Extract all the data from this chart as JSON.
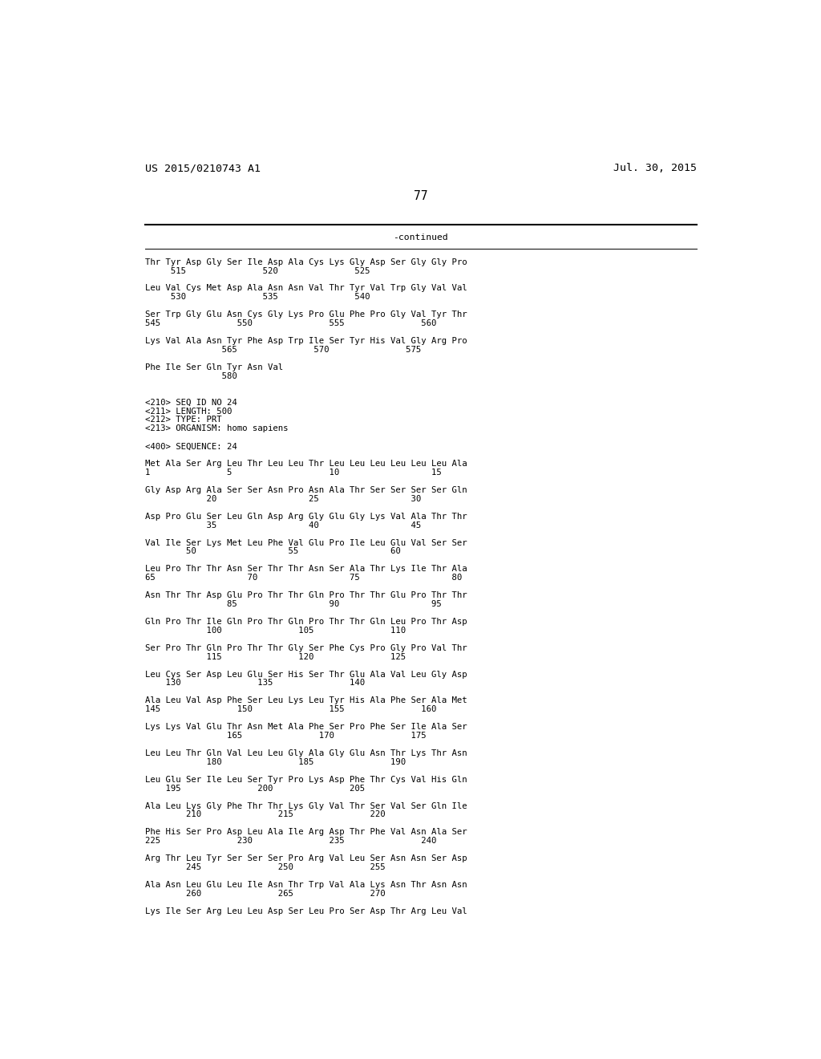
{
  "header_left": "US 2015/0210743 A1",
  "header_right": "Jul. 30, 2015",
  "page_number": "77",
  "continued_label": "-continued",
  "background_color": "#ffffff",
  "text_color": "#000000",
  "font_size": 7.7,
  "mono_font": "DejaVu Sans Mono",
  "header_font_size": 9.5,
  "content_lines": [
    "Thr Tyr Asp Gly Ser Ile Asp Ala Cys Lys Gly Asp Ser Gly Gly Pro",
    "     515               520               525",
    "",
    "Leu Val Cys Met Asp Ala Asn Asn Val Thr Tyr Val Trp Gly Val Val",
    "     530               535               540",
    "",
    "Ser Trp Gly Glu Asn Cys Gly Lys Pro Glu Phe Pro Gly Val Tyr Thr",
    "545               550               555               560",
    "",
    "Lys Val Ala Asn Tyr Phe Asp Trp Ile Ser Tyr His Val Gly Arg Pro",
    "               565               570               575",
    "",
    "Phe Ile Ser Gln Tyr Asn Val",
    "               580",
    "",
    "",
    "<210> SEQ ID NO 24",
    "<211> LENGTH: 500",
    "<212> TYPE: PRT",
    "<213> ORGANISM: homo sapiens",
    "",
    "<400> SEQUENCE: 24",
    "",
    "Met Ala Ser Arg Leu Thr Leu Leu Thr Leu Leu Leu Leu Leu Leu Ala",
    "1               5                   10                  15",
    "",
    "Gly Asp Arg Ala Ser Ser Asn Pro Asn Ala Thr Ser Ser Ser Ser Gln",
    "            20                  25                  30",
    "",
    "Asp Pro Glu Ser Leu Gln Asp Arg Gly Glu Gly Lys Val Ala Thr Thr",
    "            35                  40                  45",
    "",
    "Val Ile Ser Lys Met Leu Phe Val Glu Pro Ile Leu Glu Val Ser Ser",
    "        50                  55                  60",
    "",
    "Leu Pro Thr Thr Asn Ser Thr Thr Asn Ser Ala Thr Lys Ile Thr Ala",
    "65                  70                  75                  80",
    "",
    "Asn Thr Thr Asp Glu Pro Thr Thr Gln Pro Thr Thr Glu Pro Thr Thr",
    "                85                  90                  95",
    "",
    "Gln Pro Thr Ile Gln Pro Thr Gln Pro Thr Thr Gln Leu Pro Thr Asp",
    "            100               105               110",
    "",
    "Ser Pro Thr Gln Pro Thr Thr Gly Ser Phe Cys Pro Gly Pro Val Thr",
    "            115               120               125",
    "",
    "Leu Cys Ser Asp Leu Glu Ser His Ser Thr Glu Ala Val Leu Gly Asp",
    "    130               135               140",
    "",
    "Ala Leu Val Asp Phe Ser Leu Lys Leu Tyr His Ala Phe Ser Ala Met",
    "145               150               155               160",
    "",
    "Lys Lys Val Glu Thr Asn Met Ala Phe Ser Pro Phe Ser Ile Ala Ser",
    "                165               170               175",
    "",
    "Leu Leu Thr Gln Val Leu Leu Gly Ala Gly Glu Asn Thr Lys Thr Asn",
    "            180               185               190",
    "",
    "Leu Glu Ser Ile Leu Ser Tyr Pro Lys Asp Phe Thr Cys Val His Gln",
    "    195               200               205",
    "",
    "Ala Leu Lys Gly Phe Thr Thr Lys Gly Val Thr Ser Val Ser Gln Ile",
    "        210               215               220",
    "",
    "Phe His Ser Pro Asp Leu Ala Ile Arg Asp Thr Phe Val Asn Ala Ser",
    "225               230               235               240",
    "",
    "Arg Thr Leu Tyr Ser Ser Ser Pro Arg Val Leu Ser Asn Asn Ser Asp",
    "        245               250               255",
    "",
    "Ala Asn Leu Glu Leu Ile Asn Thr Trp Val Ala Lys Asn Thr Asn Asn",
    "        260               265               270",
    "",
    "Lys Ile Ser Arg Leu Leu Asp Ser Leu Pro Ser Asp Thr Arg Leu Val"
  ]
}
